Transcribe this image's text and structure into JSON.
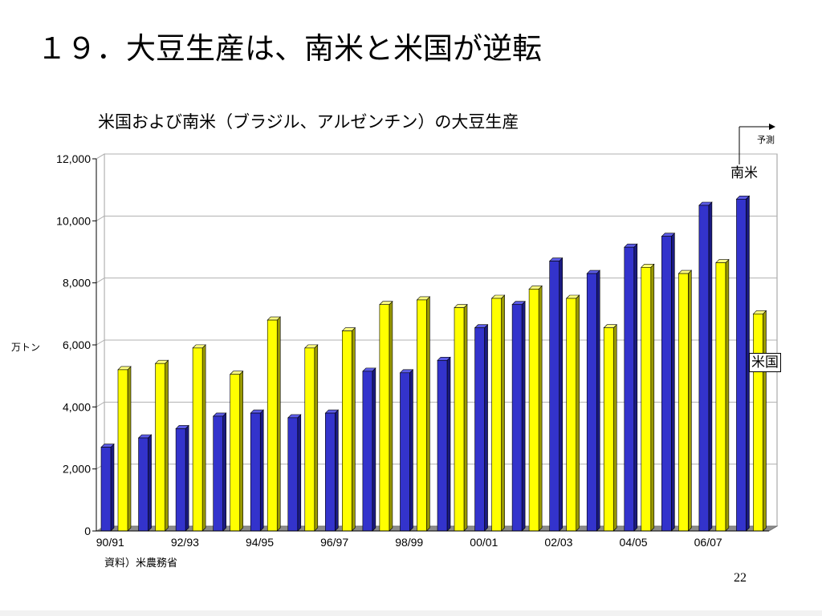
{
  "slide": {
    "title": "１９．大豆生産は、南米と米国が逆転",
    "page_number": "22"
  },
  "labels": {
    "forecast": "予測",
    "south_america": "南米",
    "usa": "米国",
    "source": "資料）米農務省"
  },
  "colors": {
    "south_america": "#3333cc",
    "usa": "#ffff00"
  },
  "chart_data": {
    "type": "bar",
    "title": "米国および南米（ブラジル、アルゼンチン）の大豆生産",
    "ylabel": "万トン",
    "xlabel": "",
    "ylim": [
      0,
      12000
    ],
    "yticks": [
      0,
      2000,
      4000,
      6000,
      8000,
      10000,
      12000
    ],
    "ytick_labels": [
      "0",
      "2,000",
      "4,000",
      "6,000",
      "8,000",
      "10,000",
      "12,000"
    ],
    "categories": [
      "90/91",
      "91/92",
      "92/93",
      "93/94",
      "94/95",
      "95/96",
      "96/97",
      "97/98",
      "98/99",
      "99/00",
      "00/01",
      "01/02",
      "02/03",
      "03/04",
      "04/05",
      "05/06",
      "06/07",
      "07/08"
    ],
    "xtick_labels_shown": [
      "90/91",
      "92/93",
      "94/95",
      "96/97",
      "98/99",
      "00/01",
      "02/03",
      "04/05",
      "06/07"
    ],
    "grid": true,
    "series": [
      {
        "name": "南米",
        "values": [
          2700,
          3000,
          3300,
          3700,
          3800,
          3650,
          3800,
          5150,
          5100,
          5500,
          6550,
          7300,
          8700,
          8300,
          9150,
          9500,
          10500,
          10700
        ]
      },
      {
        "name": "米国",
        "values": [
          5200,
          5400,
          5900,
          5050,
          6800,
          5900,
          6450,
          7300,
          7450,
          7200,
          7500,
          7800,
          7500,
          6550,
          8500,
          8300,
          8650,
          7000
        ]
      }
    ],
    "annotations": [
      "予測"
    ]
  }
}
